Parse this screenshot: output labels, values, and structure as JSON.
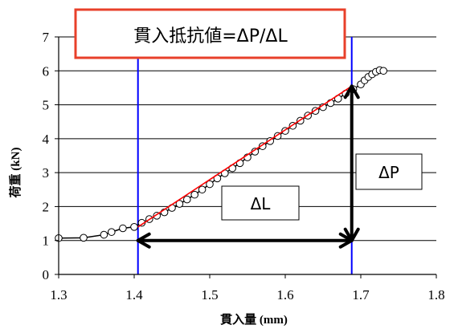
{
  "chart_data": {
    "type": "scatter",
    "title": "貫入抵抗値=ΔP/ΔL",
    "xlabel": "貫入量 (mm)",
    "ylabel": "荷重 (kN)",
    "xlim": [
      1.3,
      1.8
    ],
    "ylim": [
      0,
      7
    ],
    "x_ticks": [
      "1.3",
      "1.4",
      "1.5",
      "1.6",
      "1.7",
      "1.8"
    ],
    "y_ticks": [
      "0",
      "1",
      "2",
      "3",
      "4",
      "5",
      "6",
      "7"
    ],
    "grid": "horizontal",
    "series": [
      {
        "type": "line+markers",
        "color": "#000000",
        "points": [
          [
            1.27,
            1.08
          ],
          [
            1.3,
            1.07
          ],
          [
            1.333,
            1.08
          ],
          [
            1.36,
            1.17
          ],
          [
            1.37,
            1.25
          ],
          [
            1.385,
            1.36
          ],
          [
            1.4,
            1.4
          ],
          [
            1.41,
            1.52
          ],
          [
            1.42,
            1.63
          ],
          [
            1.43,
            1.73
          ],
          [
            1.44,
            1.83
          ],
          [
            1.45,
            1.96
          ],
          [
            1.46,
            2.08
          ],
          [
            1.47,
            2.21
          ],
          [
            1.48,
            2.35
          ],
          [
            1.49,
            2.5
          ],
          [
            1.5,
            2.66
          ],
          [
            1.51,
            2.83
          ],
          [
            1.52,
            2.98
          ],
          [
            1.53,
            3.13
          ],
          [
            1.54,
            3.28
          ],
          [
            1.55,
            3.45
          ],
          [
            1.56,
            3.62
          ],
          [
            1.57,
            3.78
          ],
          [
            1.58,
            3.93
          ],
          [
            1.59,
            4.08
          ],
          [
            1.6,
            4.23
          ],
          [
            1.61,
            4.38
          ],
          [
            1.62,
            4.53
          ],
          [
            1.63,
            4.68
          ],
          [
            1.64,
            4.82
          ],
          [
            1.65,
            4.93
          ],
          [
            1.66,
            5.05
          ],
          [
            1.67,
            5.18
          ],
          [
            1.68,
            5.33
          ],
          [
            1.69,
            5.46
          ],
          [
            1.7,
            5.6
          ],
          [
            1.705,
            5.72
          ],
          [
            1.71,
            5.82
          ],
          [
            1.715,
            5.9
          ],
          [
            1.72,
            5.97
          ],
          [
            1.725,
            6.02
          ],
          [
            1.73,
            6.0
          ]
        ]
      },
      {
        "type": "fit-line",
        "color": "#ff0000",
        "points": [
          [
            1.405,
            1.4
          ],
          [
            1.688,
            5.55
          ]
        ]
      }
    ],
    "reference_lines": [
      {
        "x": 1.405,
        "color": "#0000ff"
      },
      {
        "x": 1.688,
        "color": "#0000ff"
      }
    ],
    "arrows": [
      {
        "label": "ΔL",
        "from": [
          1.405,
          1.0
        ],
        "to": [
          1.688,
          1.0
        ],
        "direction": "both",
        "color": "#000000"
      },
      {
        "label": "ΔP",
        "from": [
          1.688,
          1.0
        ],
        "to": [
          1.688,
          5.55
        ],
        "direction": "both",
        "color": "#000000"
      }
    ],
    "annotations": [
      {
        "text": "ΔL"
      },
      {
        "text": "ΔP"
      }
    ],
    "colors": {
      "title_border": "#e8402a",
      "axis": "#000000",
      "grid": "#000000",
      "marker_fill": "#ffffff"
    }
  }
}
